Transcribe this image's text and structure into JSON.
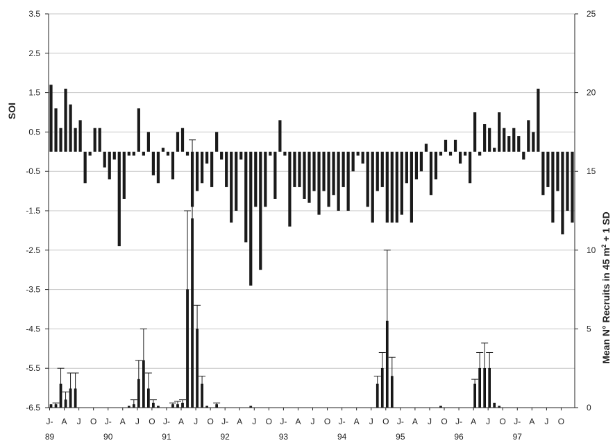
{
  "chart_data": {
    "type": "bar",
    "title": "",
    "xlabel": "",
    "y_left_label": "SOI",
    "y_right_label_parts": [
      "Mean N° Recruits in 45 m",
      "2",
      " + 1 SD"
    ],
    "y_left_lim": [
      -6.5,
      3.5
    ],
    "y_left_ticks": [
      "3.5",
      "2.5",
      "1.5",
      "0.5",
      "-0.5",
      "-1.5",
      "-2.5",
      "-3.5",
      "-4.5",
      "-5.5",
      "-6.5"
    ],
    "y_right_lim": [
      0,
      25
    ],
    "y_right_ticks": [
      "25",
      "20",
      "15",
      "10",
      "5",
      "0"
    ],
    "grid": true,
    "x_month_labels": [
      "J-",
      "A",
      "J",
      "O",
      "J-",
      "A",
      "J",
      "O",
      "J-",
      "A",
      "J",
      "O",
      "J-",
      "A",
      "J",
      "O",
      "J-",
      "A",
      "J",
      "O",
      "J-",
      "A",
      "J",
      "O",
      "J-",
      "A",
      "J",
      "O",
      "J-",
      "A",
      "J",
      "O",
      "J-",
      "A",
      "J",
      "O"
    ],
    "x_year_labels": [
      "89",
      "90",
      "91",
      "92",
      "93",
      "94",
      "95",
      "96",
      "97"
    ],
    "months": 108,
    "series": [
      {
        "name": "SOI",
        "axis": "left",
        "values": [
          1.7,
          1.1,
          0.6,
          1.6,
          1.2,
          0.6,
          0.8,
          -0.8,
          -0.1,
          0.6,
          0.6,
          -0.4,
          -0.7,
          -0.2,
          -2.4,
          -1.2,
          -0.1,
          -0.1,
          1.1,
          -0.1,
          0.5,
          -0.6,
          -0.8,
          0.1,
          -0.1,
          -0.7,
          0.5,
          0.6,
          -0.1,
          -1.4,
          -1.0,
          -0.8,
          -0.3,
          -0.9,
          0.5,
          -0.2,
          -0.9,
          -1.8,
          -1.5,
          -0.2,
          -2.3,
          -3.4,
          -1.4,
          -3.0,
          -1.4,
          -0.1,
          -1.2,
          0.8,
          -0.1,
          -1.9,
          -0.9,
          -0.9,
          -1.2,
          -1.3,
          -1.0,
          -1.6,
          -1.0,
          -1.4,
          -1.1,
          -1.5,
          -0.9,
          -1.5,
          -0.5,
          -0.1,
          -0.3,
          -1.4,
          -1.8,
          -1.0,
          -0.9,
          -1.8,
          -1.8,
          -1.8,
          -1.6,
          -0.8,
          -1.8,
          -0.7,
          -0.5,
          0.2,
          -1.1,
          -0.7,
          -0.1,
          0.3,
          -0.1,
          0.3,
          -0.3,
          -0.1,
          -0.8,
          1.0,
          -0.1,
          0.7,
          0.6,
          0.1,
          1.0,
          0.6,
          0.4,
          0.6,
          0.4,
          -0.2,
          0.8,
          0.5,
          1.6,
          -1.1,
          -0.9,
          -1.8,
          -1.0,
          -2.1,
          -1.5,
          -1.8
        ]
      },
      {
        "name": "Recruits",
        "axis": "right",
        "values": [
          0.2,
          0.2,
          1.5,
          0.5,
          1.2,
          1.2,
          0,
          0,
          0,
          0,
          0,
          0,
          0,
          0,
          0,
          0,
          0.1,
          0.2,
          1.8,
          3.0,
          1.2,
          0.3,
          0.1,
          0,
          0,
          0.2,
          0.2,
          0.3,
          7.5,
          12.0,
          5.0,
          1.5,
          0.1,
          0,
          0.2,
          0,
          0,
          0,
          0,
          0,
          0,
          0.1,
          0,
          0,
          0,
          0,
          0,
          0,
          0,
          0,
          0,
          0,
          0,
          0,
          0,
          0,
          0,
          0,
          0,
          0,
          0,
          0,
          0,
          0,
          0,
          0,
          0,
          1.5,
          2.5,
          5.5,
          2.0,
          0,
          0,
          0,
          0,
          0,
          0,
          0,
          0,
          0,
          0.1,
          0,
          0,
          0,
          0,
          0,
          0,
          1.5,
          2.5,
          2.5,
          2.5,
          0.3,
          0.1,
          0,
          0,
          0,
          0,
          0,
          0,
          0,
          0,
          0,
          0,
          0,
          0,
          0,
          0,
          0
        ],
        "sd": [
          0,
          0.1,
          1.0,
          0.5,
          1.0,
          1.0,
          0,
          0,
          0,
          0,
          0,
          0,
          0,
          0,
          0,
          0,
          0,
          0.3,
          1.2,
          2.0,
          1.0,
          0.2,
          0,
          0,
          0,
          0.1,
          0.2,
          0.2,
          5.0,
          5.0,
          1.5,
          0.5,
          0,
          0,
          0.1,
          0,
          0,
          0,
          0,
          0,
          0,
          0,
          0,
          0,
          0,
          0,
          0,
          0,
          0,
          0,
          0,
          0,
          0,
          0,
          0,
          0,
          0,
          0,
          0,
          0,
          0,
          0,
          0,
          0,
          0,
          0,
          0,
          0.5,
          1.0,
          4.5,
          1.2,
          0,
          0,
          0,
          0,
          0,
          0,
          0,
          0,
          0,
          0,
          0,
          0,
          0,
          0,
          0,
          0,
          0.3,
          1.0,
          1.6,
          1.0,
          0,
          0,
          0,
          0,
          0,
          0,
          0,
          0,
          0,
          0,
          0,
          0,
          0,
          0,
          0,
          0,
          0
        ]
      }
    ],
    "colors": {
      "bar": "#1a1a1a",
      "grid": "#c4c4c4",
      "axis": "#222222"
    }
  }
}
